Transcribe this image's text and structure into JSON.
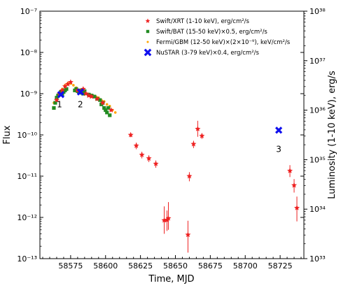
{
  "chart_data": {
    "type": "scatter",
    "title": "",
    "xlabel": "Time, MJD",
    "ylabel": "Flux",
    "ylabel_right": "Luminosity (1-10 keV), erg/s",
    "x_range": [
      58553,
      58742
    ],
    "y_range": [
      1e-13,
      1e-07
    ],
    "y_scale": "log",
    "y2_range": [
      1e+33,
      1e+38
    ],
    "y2_scale": "log",
    "x_ticks": [
      "58575",
      "58600",
      "58625",
      "58650",
      "58675",
      "58700",
      "58725"
    ],
    "y_ticks": [
      "10⁻¹³",
      "10⁻¹²",
      "10⁻¹¹",
      "10⁻¹⁰",
      "10⁻⁹",
      "10⁻⁸",
      "10⁻⁷"
    ],
    "y2_ticks": [
      "10³³",
      "10³⁴",
      "10³⁵",
      "10³⁶",
      "10³⁷",
      "10³⁸"
    ],
    "grid": false,
    "legend_position": "top-right",
    "legend": [
      "Swift/XRT (1-10 keV), erg/cm²/s",
      "Swift/BAT (15-50 keV)×0.5, erg/cm²/s",
      "Fermi/GBM (12-50 keV)×(2×10⁻⁹), keV/cm²/s",
      "NuSTAR (3-79 keV)×0.4, erg/cm²/s"
    ],
    "annotations": [
      {
        "text": "1",
        "x": 58567,
        "y": 5.5e-10
      },
      {
        "text": "2",
        "x": 58582,
        "y": 5.5e-10
      },
      {
        "text": "3",
        "x": 58724,
        "y": 4.5e-11
      }
    ],
    "series": [
      {
        "name": "Swift/XRT (1-10 keV), erg/cm²/s",
        "color": "#ee2222",
        "marker": "star",
        "x": [
          58565,
          58567,
          58569,
          58571,
          58573,
          58575,
          58580,
          58582,
          58584,
          58586,
          58588,
          58590,
          58594,
          58598,
          58604,
          58618,
          58622,
          58626,
          58631,
          58636,
          58642,
          58644,
          58645,
          58659,
          58660,
          58663,
          58666,
          58669,
          58732,
          58735,
          58737
        ],
        "y": [
          7e-10,
          1e-09,
          1.2e-09,
          1.5e-09,
          1.7e-09,
          1.9e-09,
          1.2e-09,
          1.1e-09,
          1.3e-09,
          1e-09,
          9e-10,
          8.5e-10,
          7.5e-10,
          6e-10,
          4e-10,
          1e-10,
          5.5e-11,
          3.3e-11,
          2.7e-11,
          2e-11,
          8.5e-13,
          8.7e-13,
          9.5e-13,
          3.8e-13,
          1e-11,
          6e-11,
          1.4e-10,
          9.5e-11,
          1.35e-11,
          6e-12,
          1.7e-12
        ],
        "yerr_lo": [
          0,
          0,
          0,
          0,
          0,
          0,
          0,
          0,
          0,
          0,
          0,
          0,
          0,
          0,
          0,
          1.2e-11,
          1e-11,
          6e-12,
          5e-12,
          4e-12,
          4.5e-13,
          4e-13,
          4.5e-13,
          2.4e-13,
          2.5e-12,
          1.2e-11,
          5e-11,
          1.5e-11,
          4e-12,
          2e-12,
          9e-13
        ],
        "yerr_hi": [
          0,
          0,
          0,
          0,
          0,
          0,
          0,
          0,
          0,
          0,
          0,
          0,
          0,
          0,
          0,
          1.2e-11,
          1e-11,
          6e-12,
          5e-12,
          4e-12,
          1e-12,
          6e-13,
          1.4e-12,
          4.5e-13,
          2.5e-12,
          1.2e-11,
          8e-11,
          1.5e-11,
          5e-12,
          2.5e-12,
          1.5e-12
        ]
      },
      {
        "name": "Swift/BAT (15-50 keV)×0.5, erg/cm²/s",
        "color": "#228b22",
        "marker": "square",
        "x": [
          58563,
          58564,
          58565,
          58566,
          58567,
          58568,
          58569,
          58570,
          58571,
          58572,
          58578,
          58579,
          58580,
          58581,
          58582,
          58583,
          58584,
          58585,
          58588,
          58590,
          58592,
          58594,
          58596,
          58597,
          58598,
          58599,
          58600,
          58601,
          58602,
          58603
        ],
        "y": [
          4.5e-10,
          6e-10,
          8e-10,
          9e-10,
          1e-09,
          1.1e-09,
          9.5e-10,
          1.1e-09,
          1.2e-09,
          1.3e-09,
          1.2e-09,
          1.3e-09,
          1.15e-09,
          1.1e-09,
          1.2e-09,
          1.05e-09,
          1e-09,
          1.15e-09,
          9.5e-10,
          9e-10,
          8.5e-10,
          7.5e-10,
          7e-10,
          5.5e-10,
          6e-10,
          4.5e-10,
          4e-10,
          3.5e-10,
          4.5e-10,
          3e-10
        ]
      },
      {
        "name": "Fermi/GBM (12-50 keV)×(2×10⁻⁹), keV/cm²/s",
        "color": "#ffa500",
        "marker": "dot",
        "x": [
          58563,
          58565,
          58567,
          58569,
          58571,
          58573,
          58575,
          58577,
          58579,
          58581,
          58583,
          58585,
          58587,
          58589,
          58591,
          58593,
          58595,
          58597,
          58599,
          58601,
          58603,
          58605,
          58607
        ],
        "y": [
          6e-10,
          8e-10,
          1e-09,
          1.3e-09,
          1.6e-09,
          1.8e-09,
          1.75e-09,
          1.6e-09,
          1.4e-09,
          1.2e-09,
          1.1e-09,
          1.05e-09,
          1e-09,
          9.5e-10,
          9e-10,
          8.5e-10,
          8e-10,
          7e-10,
          6.5e-10,
          5.5e-10,
          5e-10,
          4e-10,
          3.5e-10
        ]
      },
      {
        "name": "NuSTAR (3-79 keV)×0.4, erg/cm²/s",
        "color": "#1010ee",
        "marker": "x",
        "x": [
          58568,
          58582,
          58724
        ],
        "y": [
          9.5e-10,
          1.1e-09,
          1.3e-10
        ]
      }
    ]
  }
}
